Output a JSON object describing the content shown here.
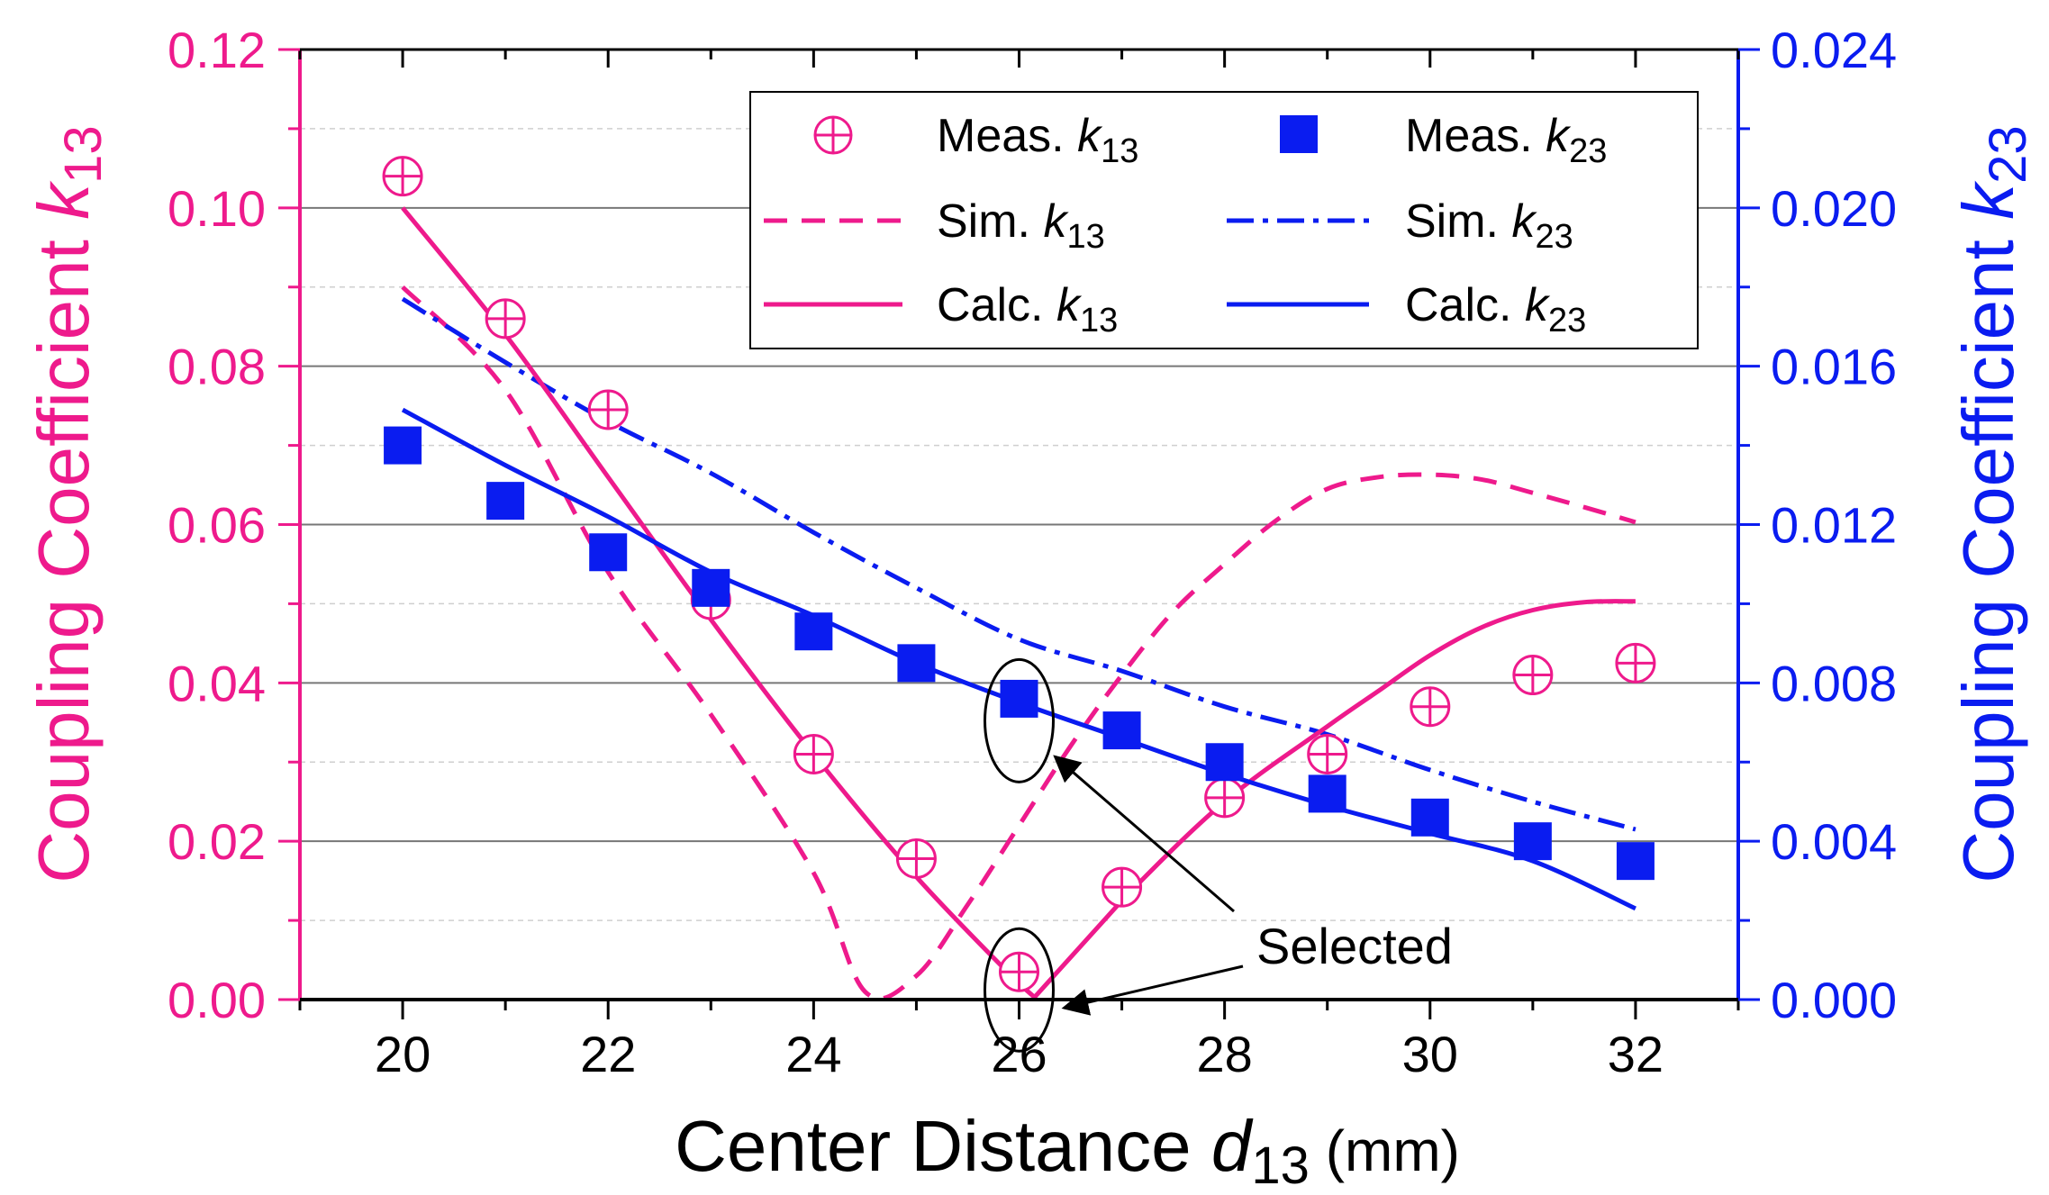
{
  "chart_data": {
    "type": "line",
    "xlabel": {
      "main": "Center Distance ",
      "var": "d",
      "sub": "13",
      "unit": " (mm)"
    },
    "ylabel_left": {
      "main": "Coupling Coefficient ",
      "var": "k",
      "sub": "13"
    },
    "ylabel_right": {
      "main": "Coupling Coefficient ",
      "var": "k",
      "sub": "23"
    },
    "xlim": [
      19,
      33
    ],
    "ylim_left": [
      0,
      0.12
    ],
    "ylim_right": [
      0,
      0.024
    ],
    "x_ticks": [
      "20",
      "22",
      "24",
      "26",
      "28",
      "30",
      "32"
    ],
    "y_left_ticks": [
      "0.00",
      "0.02",
      "0.04",
      "0.06",
      "0.08",
      "0.10",
      "0.12"
    ],
    "y_right_ticks": [
      "0.000",
      "0.004",
      "0.008",
      "0.012",
      "0.016",
      "0.020",
      "0.024"
    ],
    "grid": true,
    "legend_position": "top-right",
    "colors": {
      "k13": "#ee1a8c",
      "k23": "#0a1cf0"
    },
    "series": [
      {
        "name": "Meas.",
        "var": "k",
        "sub": "13",
        "axis": "left",
        "style": "marker-circle-plus",
        "x": [
          20,
          21,
          22,
          23,
          24,
          25,
          26,
          27,
          28,
          29,
          30,
          31,
          32
        ],
        "y": [
          0.104,
          0.086,
          0.0745,
          0.0505,
          0.031,
          0.0178,
          0.0035,
          0.0142,
          0.0255,
          0.031,
          0.037,
          0.041,
          0.0425
        ]
      },
      {
        "name": "Meas.",
        "var": "k",
        "sub": "23",
        "axis": "right",
        "style": "marker-square",
        "x": [
          20,
          21,
          22,
          23,
          24,
          25,
          26,
          27,
          28,
          29,
          30,
          31,
          32
        ],
        "y": [
          0.014,
          0.0126,
          0.0113,
          0.0104,
          0.0093,
          0.0085,
          0.0076,
          0.0068,
          0.006,
          0.0052,
          0.0046,
          0.004,
          0.0035
        ]
      },
      {
        "name": "Sim.",
        "var": "k",
        "sub": "13",
        "axis": "left",
        "style": "dash",
        "x": [
          20,
          21,
          22,
          23,
          24,
          24.5,
          25,
          25.5,
          26,
          26.5,
          27,
          27.5,
          28,
          28.5,
          29,
          29.5,
          30,
          30.5,
          31,
          31.5,
          32
        ],
        "y": [
          0.09,
          0.077,
          0.054,
          0.036,
          0.016,
          0.001,
          0.003,
          0.012,
          0.022,
          0.032,
          0.041,
          0.049,
          0.055,
          0.0605,
          0.0645,
          0.066,
          0.0663,
          0.0657,
          0.064,
          0.0622,
          0.0603
        ]
      },
      {
        "name": "Sim.",
        "var": "k",
        "sub": "23",
        "axis": "right",
        "style": "dashdot",
        "x": [
          20,
          21,
          22,
          23,
          24,
          25,
          26,
          27,
          28,
          29,
          30,
          31,
          32
        ],
        "y": [
          0.0177,
          0.0161,
          0.0146,
          0.0133,
          0.0118,
          0.0104,
          0.0091,
          0.0083,
          0.0074,
          0.0067,
          0.0058,
          0.005,
          0.0043
        ]
      },
      {
        "name": "Calc.",
        "var": "k",
        "sub": "13",
        "axis": "left",
        "style": "solid",
        "x": [
          20,
          21,
          22,
          23,
          24,
          25,
          26,
          26.15,
          27,
          28,
          29,
          29.5,
          30,
          30.5,
          31,
          31.5,
          32
        ],
        "y": [
          0.1,
          0.084,
          0.066,
          0.048,
          0.031,
          0.0155,
          0.002,
          0.0003,
          0.0125,
          0.025,
          0.0345,
          0.039,
          0.0435,
          0.047,
          0.0492,
          0.0502,
          0.0503
        ]
      },
      {
        "name": "Calc.",
        "var": "k",
        "sub": "23",
        "axis": "right",
        "style": "solid",
        "x": [
          20,
          21,
          22,
          23,
          24,
          25,
          26,
          27,
          28,
          29,
          30,
          31,
          32
        ],
        "y": [
          0.0149,
          0.0135,
          0.0122,
          0.0108,
          0.0097,
          0.0085,
          0.0075,
          0.0066,
          0.0057,
          0.0049,
          0.0042,
          0.0035,
          0.0023
        ]
      }
    ],
    "annotation": {
      "text": "Selected",
      "points": [
        [
          26,
          0.0075,
          "right"
        ],
        [
          26,
          0.0035,
          "left"
        ]
      ]
    }
  }
}
